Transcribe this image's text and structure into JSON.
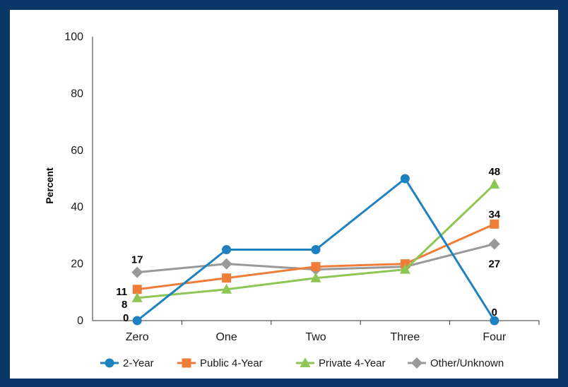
{
  "chart_data": {
    "type": "line",
    "categories": [
      "Zero",
      "One",
      "Two",
      "Three",
      "Four"
    ],
    "ylabel": "Percent",
    "xlabel": "",
    "ylim": [
      0,
      100
    ],
    "yticks": [
      0,
      20,
      40,
      60,
      80,
      100
    ],
    "grid": false,
    "legend_position": "bottom",
    "series": [
      {
        "name": "2-Year",
        "color": "#1f82c0",
        "marker": "circle",
        "values": [
          0,
          25,
          25,
          50,
          0
        ]
      },
      {
        "name": "Public 4-Year",
        "color": "#ef7d3a",
        "marker": "square",
        "values": [
          11,
          15,
          19,
          20,
          34
        ]
      },
      {
        "name": "Private 4-Year",
        "color": "#8dc655",
        "marker": "triangle",
        "values": [
          8,
          11,
          15,
          18,
          48
        ]
      },
      {
        "name": "Other/Unknown",
        "color": "#999999",
        "marker": "diamond",
        "values": [
          17,
          20,
          18,
          19,
          27
        ]
      }
    ],
    "data_labels": [
      {
        "text": "17",
        "series": "Other/Unknown",
        "index": 0
      },
      {
        "text": "11",
        "series": "Public 4-Year",
        "index": 0
      },
      {
        "text": "8",
        "series": "Private 4-Year",
        "index": 0
      },
      {
        "text": "0",
        "series": "2-Year",
        "index": 0
      },
      {
        "text": "48",
        "series": "Private 4-Year",
        "index": 4
      },
      {
        "text": "34",
        "series": "Public 4-Year",
        "index": 4
      },
      {
        "text": "27",
        "series": "Other/Unknown",
        "index": 4
      },
      {
        "text": "0",
        "series": "2-Year",
        "index": 4
      }
    ]
  }
}
